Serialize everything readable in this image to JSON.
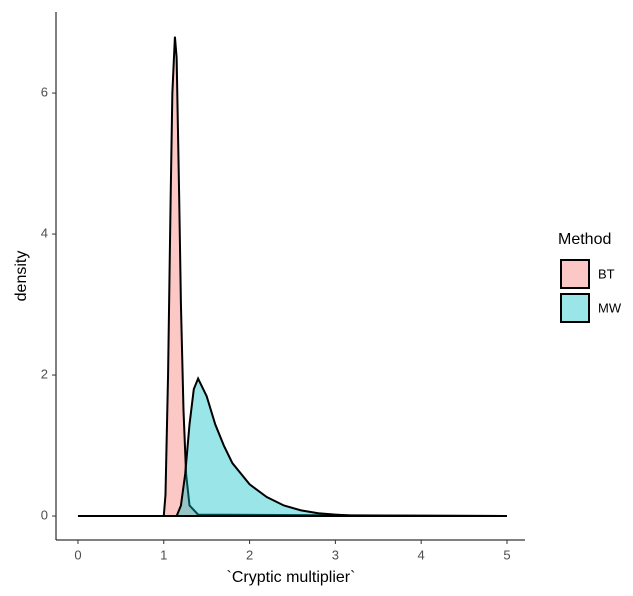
{
  "chart_data": {
    "type": "density",
    "x_label": "`Cryptic multiplier`",
    "y_label": "density",
    "legend_title": "Method",
    "legend": "right",
    "fill_opacity": 0.4,
    "xlim": [
      -0.256,
      5.21
    ],
    "ylim": [
      -0.34,
      7.15
    ],
    "xticks": [
      0,
      1,
      2,
      3,
      4,
      5
    ],
    "yticks": [
      0,
      2,
      4,
      6
    ],
    "series": [
      {
        "name": "BT",
        "color": "#F8766D",
        "x": [
          0,
          1.0,
          1.02,
          1.05,
          1.08,
          1.1,
          1.13,
          1.15,
          1.18,
          1.2,
          1.23,
          1.26,
          1.3,
          1.4,
          5
        ],
        "values": [
          0,
          0,
          0.3,
          2.0,
          4.5,
          6.0,
          6.8,
          6.5,
          4.5,
          3.0,
          1.5,
          0.6,
          0.15,
          0.02,
          0
        ]
      },
      {
        "name": "MW",
        "color": "#00BFC4",
        "x": [
          0,
          1.15,
          1.2,
          1.25,
          1.3,
          1.35,
          1.4,
          1.5,
          1.6,
          1.7,
          1.8,
          2.0,
          2.2,
          2.4,
          2.6,
          2.8,
          3.0,
          3.2,
          5
        ],
        "values": [
          0,
          0,
          0.15,
          0.6,
          1.3,
          1.8,
          1.95,
          1.7,
          1.3,
          1.0,
          0.75,
          0.45,
          0.27,
          0.15,
          0.08,
          0.04,
          0.02,
          0.005,
          0
        ]
      }
    ]
  }
}
